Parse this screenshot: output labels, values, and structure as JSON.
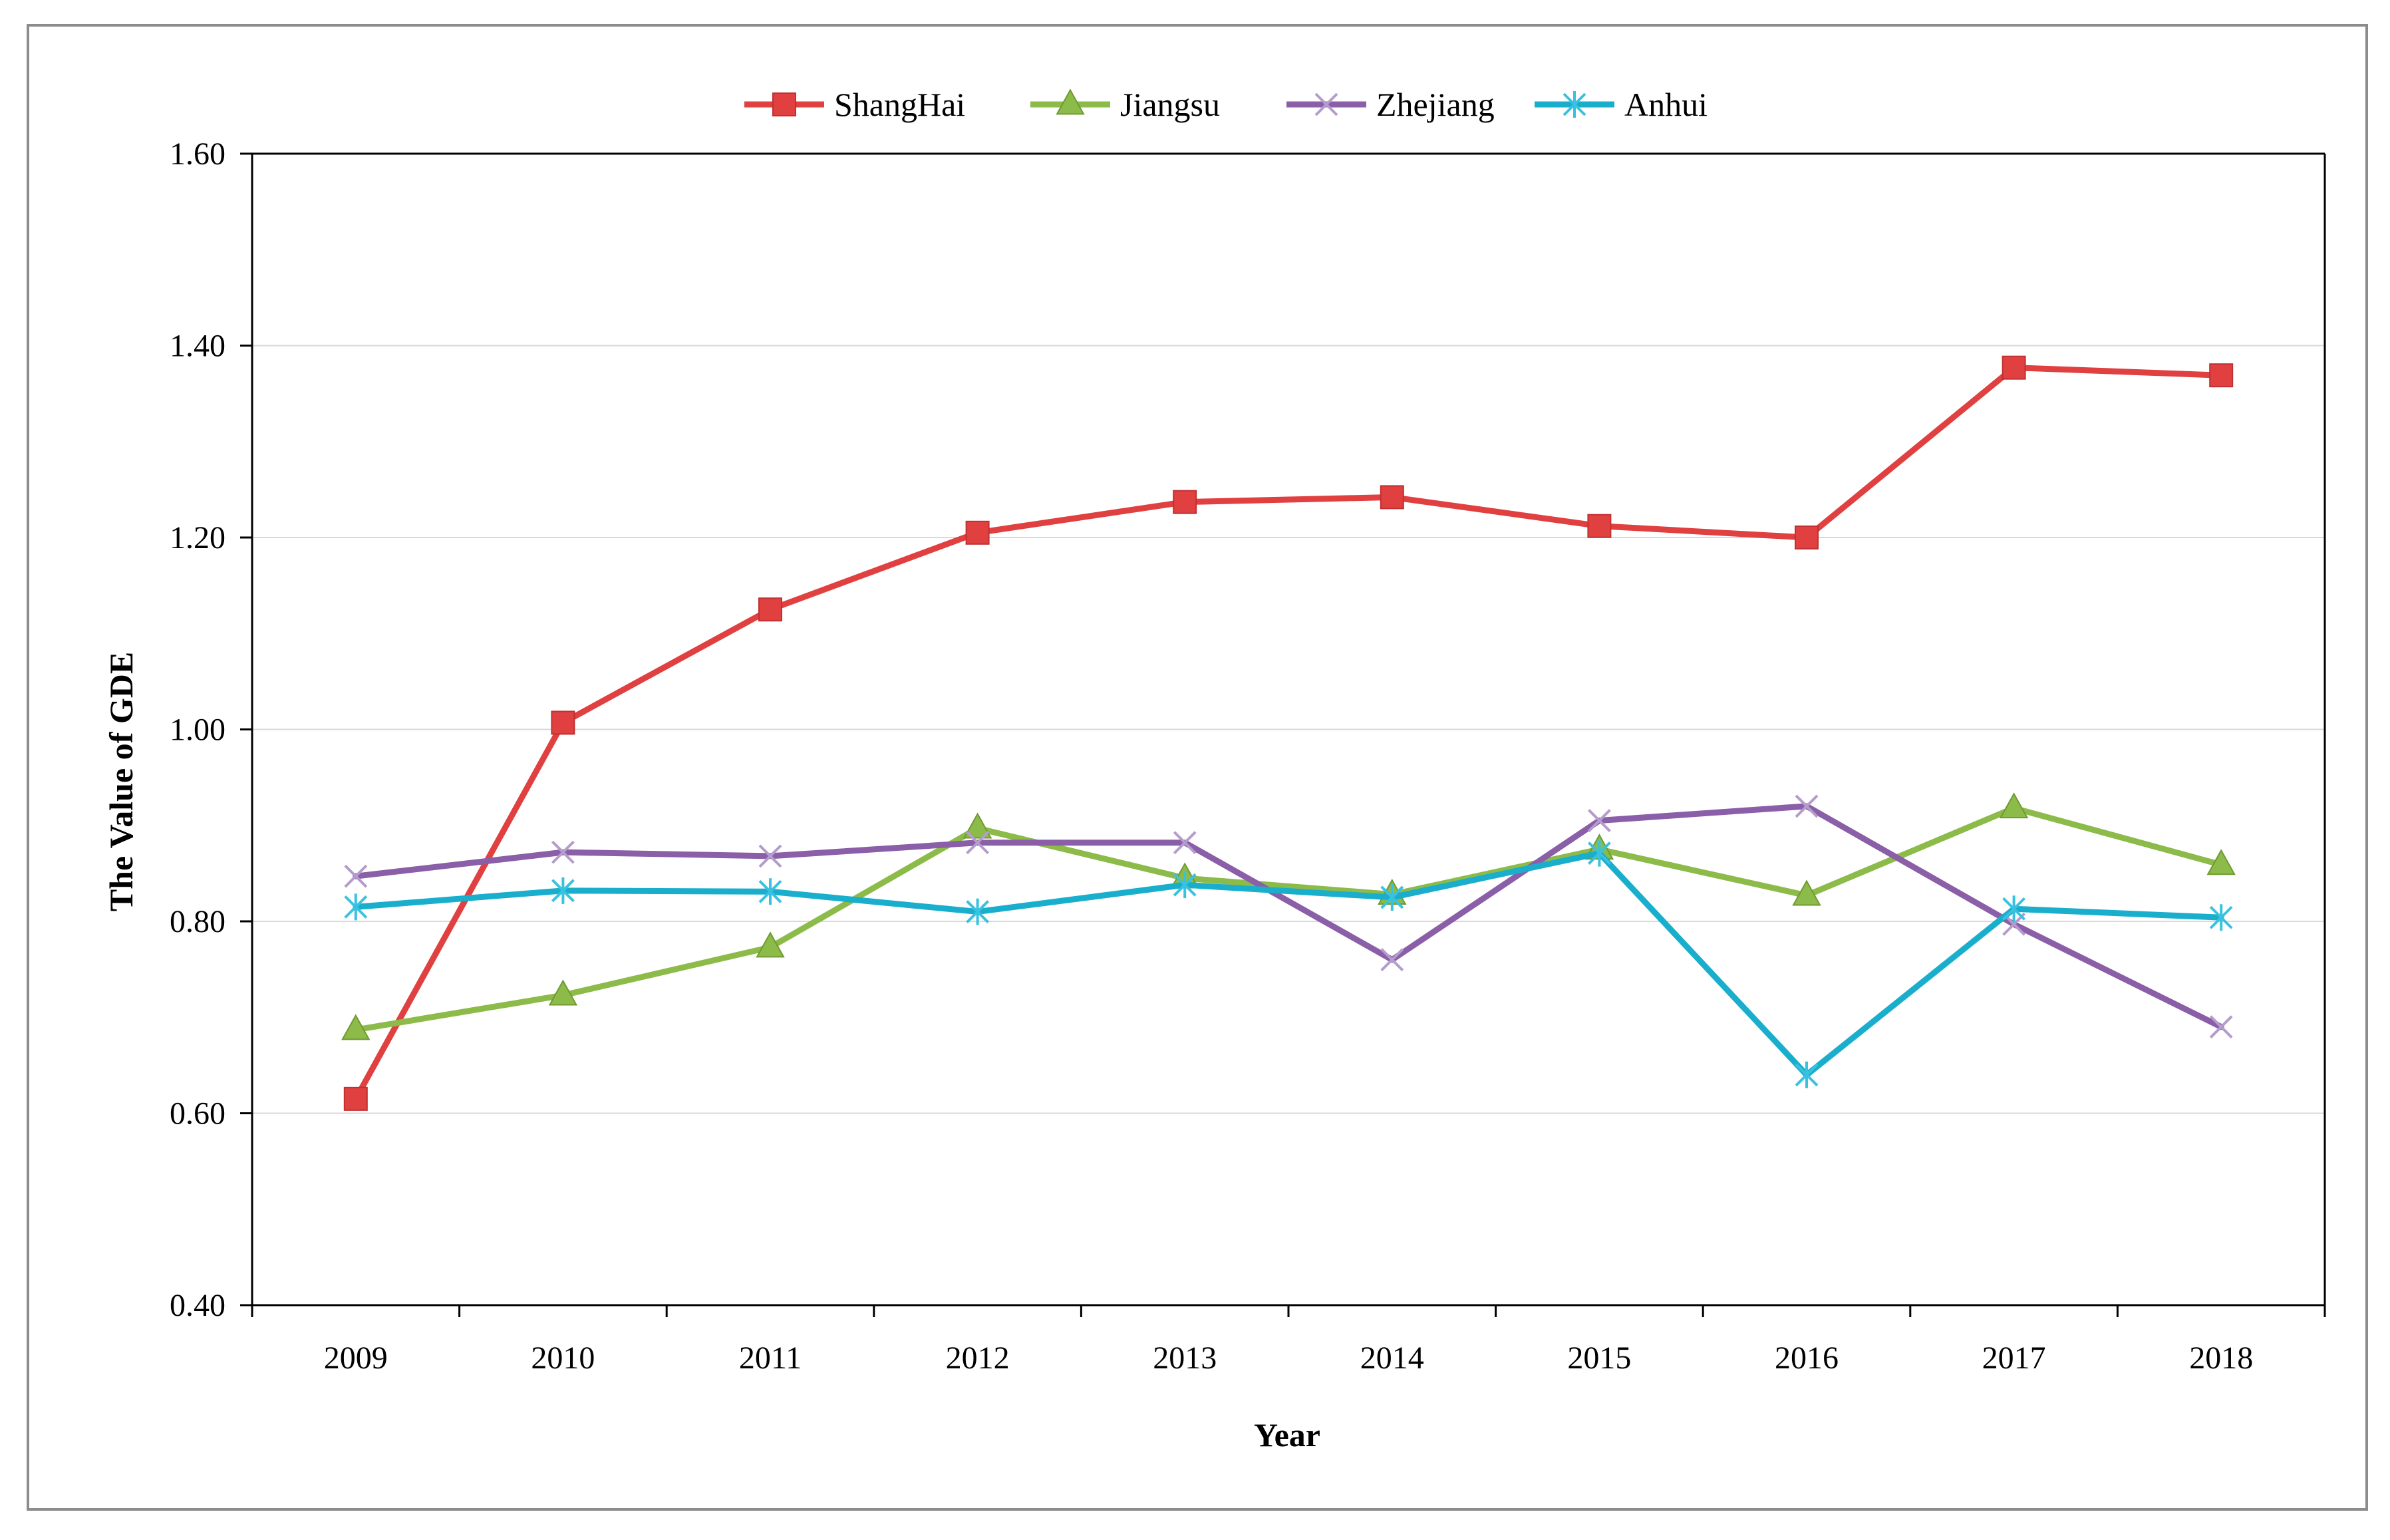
{
  "chart_data": {
    "type": "line",
    "title": "",
    "xlabel": "Year",
    "ylabel": "The Value of GDE",
    "categories": [
      "2009",
      "2010",
      "2011",
      "2012",
      "2013",
      "2014",
      "2015",
      "2016",
      "2017",
      "2018"
    ],
    "ylim": [
      0.4,
      1.6
    ],
    "yticks": [
      "0.40",
      "0.60",
      "0.80",
      "1.00",
      "1.20",
      "1.40",
      "1.60"
    ],
    "ytick_values": [
      0.4,
      0.6,
      0.8,
      1.0,
      1.2,
      1.4,
      1.6
    ],
    "grid": true,
    "legend_position": "top-center",
    "series": [
      {
        "name": "ShangHai",
        "color": "#e04040",
        "marker": "square",
        "values": [
          0.615,
          1.007,
          1.125,
          1.205,
          1.237,
          1.242,
          1.212,
          1.2,
          1.377,
          1.369
        ]
      },
      {
        "name": "Jiangsu",
        "color": "#8dbb4a",
        "marker": "triangle",
        "values": [
          0.687,
          0.723,
          0.773,
          0.897,
          0.845,
          0.828,
          0.875,
          0.827,
          0.918,
          0.859
        ]
      },
      {
        "name": "Zhejiang",
        "color": "#8a5fa8",
        "marker": "x",
        "values": [
          0.847,
          0.872,
          0.868,
          0.882,
          0.882,
          0.76,
          0.905,
          0.92,
          0.797,
          0.69
        ]
      },
      {
        "name": "Anhui",
        "color": "#1aaecd",
        "marker": "asterisk",
        "values": [
          0.815,
          0.832,
          0.831,
          0.81,
          0.838,
          0.825,
          0.871,
          0.64,
          0.813,
          0.804
        ]
      }
    ]
  }
}
